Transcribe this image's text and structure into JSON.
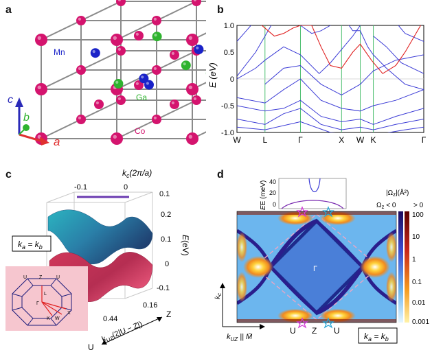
{
  "panels": {
    "a": {
      "label": "a",
      "atoms": {
        "mn": "Mn",
        "ga": "Ga",
        "co": "Co"
      },
      "axes": {
        "a": "a",
        "b": "b",
        "c": "c"
      },
      "colors": {
        "co": "#d4146e",
        "mn": "#1a22c8",
        "ga": "#2fb32f",
        "bond": "#8a8a8a"
      }
    },
    "b": {
      "label": "b",
      "ylabel": "E (eV)",
      "yticks": [
        "1.0",
        "0.5",
        "0",
        "-0.5",
        "-1.0"
      ],
      "kpoints": [
        "W",
        "L",
        "Γ",
        "X",
        "W",
        "K",
        "Γ"
      ],
      "chart_data": {
        "type": "line",
        "title": "",
        "xlabel": "",
        "ylabel": "E (eV)",
        "ylim": [
          -1.0,
          1.0
        ],
        "x_labels": [
          "W",
          "L",
          "Γ",
          "X",
          "W",
          "K",
          "Γ"
        ],
        "series": [
          {
            "name": "bands",
            "color": "#3b3bd6"
          },
          {
            "name": "highlighted band",
            "color": "#e02020"
          }
        ]
      }
    },
    "c": {
      "label": "c",
      "kc_label": "k",
      "kc_sub": "c",
      "kc_unit": "(2π/a)",
      "kc_ticks": [
        "-0.1",
        "0"
      ],
      "e_label": "E",
      "e_unit": "(eV)",
      "e_ticks": [
        "0.2",
        "0.1",
        "0",
        "-0.1"
      ],
      "kuz_label": "k",
      "kuz_sub": "UZ",
      "kuz_unit": "(2|U − Z|)",
      "kuz_ticks": [
        "0.16",
        "0.44"
      ],
      "z_label": "Z",
      "u_label": "U",
      "box_text": "k",
      "box_a": "a",
      "box_eq": " = k",
      "box_b": "b",
      "tick_01": "0.1",
      "bz_labels": [
        "U",
        "Z",
        "U",
        "L",
        "Γ",
        "K",
        "W",
        "X"
      ]
    },
    "d": {
      "label": "d",
      "inset_ylabel": "E (meV)",
      "inset_ticks": [
        "40",
        "20",
        "0"
      ],
      "gamma": "Γ",
      "bottom_labels": [
        "U",
        "Z",
        "U"
      ],
      "kc_axis": "k",
      "kc_sub": "c",
      "kuz_axis": "k",
      "kuz_sub": "UZ",
      "kuz_suffix": " || M̄",
      "box_text": "k",
      "box_a": "a",
      "box_eq": " = k",
      "box_b": "b",
      "cbar_title": "|Ω",
      "cbar_title_sub": "z",
      "cbar_title_end": "|(Å²)",
      "cbar_sign_neg": "Ω",
      "cbar_sign_neg_sub": "z",
      "cbar_sign_mid": " < 0",
      "cbar_sign_pos": "> 0",
      "cbar_ticks": [
        "100",
        "10",
        "1",
        "0.1",
        "0.01",
        "0.001"
      ]
    }
  }
}
